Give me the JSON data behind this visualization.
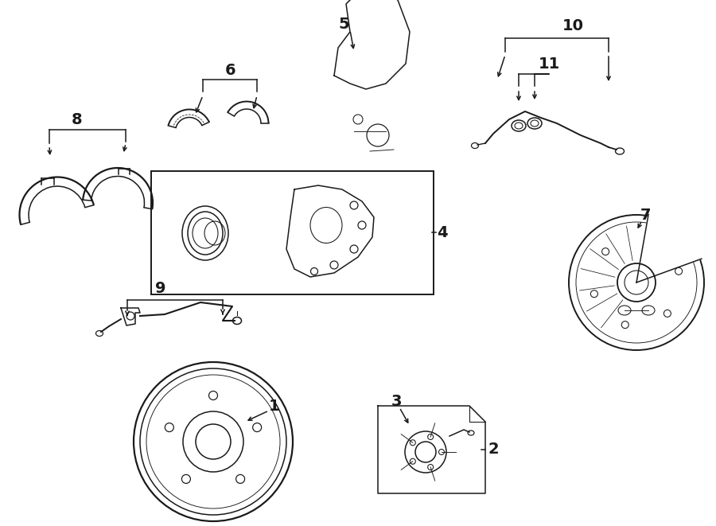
{
  "bg_color": "#ffffff",
  "line_color": "#1a1a1a",
  "line_width": 1.1,
  "label_fontsize": 14,
  "bold_fontsize": 14
}
